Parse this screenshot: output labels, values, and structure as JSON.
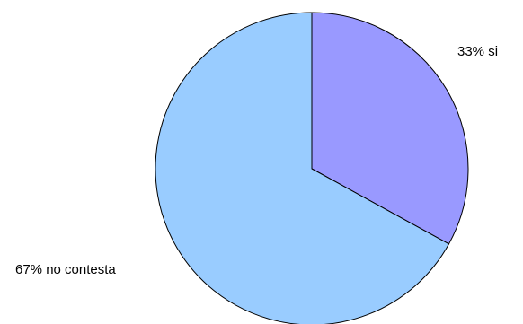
{
  "chart_data": {
    "type": "pie",
    "title": "",
    "categories": [
      "si",
      "no contesta"
    ],
    "values": [
      33,
      67
    ],
    "labels": [
      "33% si",
      "67% no contesta"
    ],
    "colors": [
      "#9999ff",
      "#99ccff"
    ],
    "start_angle_deg": 0,
    "direction": "clockwise",
    "legend": "none",
    "border_color": "#000000"
  }
}
